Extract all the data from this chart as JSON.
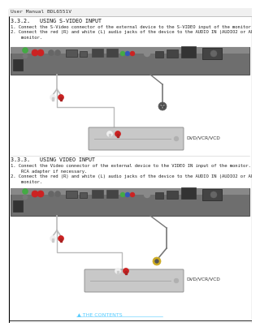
{
  "page_label": "User Manual BDL6551V",
  "return_link": "▲ THE CONTENTS",
  "section1_title": "3.3.2.   USING S-VIDEO INPUT",
  "section1_items": [
    "1. Connect the S-Video connector of the external device to the S-VIDEO input of the monitor.",
    "2. Connect the red (R) and white (L) audio jacks of the device to the AUDIO IN (AUDIO2 or AUDIO3) jacks of the",
    "    monitor."
  ],
  "section2_title": "3.3.3.   USING VIDEO INPUT",
  "section2_items": [
    "1. Connect the Video connector of the external device to the VIDEO IN input of the monitor. Use the supplied BNC-to-",
    "    RCA adapter if necessary.",
    "2. Connect the red (R) and white (L) audio jacks of the device to the AUDIO IN (AUDIO2 or AUDIO3) jacks of the",
    "    monitor."
  ],
  "bg_color": "#ffffff",
  "text_color": "#222222",
  "link_color": "#55ccff",
  "panel_color": "#7a7a7a",
  "panel_dark": "#555555",
  "panel_light": "#999999",
  "dvd_color": "#c8c8c8",
  "dvd_label": "DVD/VCR/VCD",
  "cable_gray": "#aaaaaa",
  "cable_white": "#f0f0f0",
  "cable_red": "#cc2222",
  "highlight_cyan": "#00aaff",
  "port_dark": "#444444",
  "port_mid": "#888888"
}
